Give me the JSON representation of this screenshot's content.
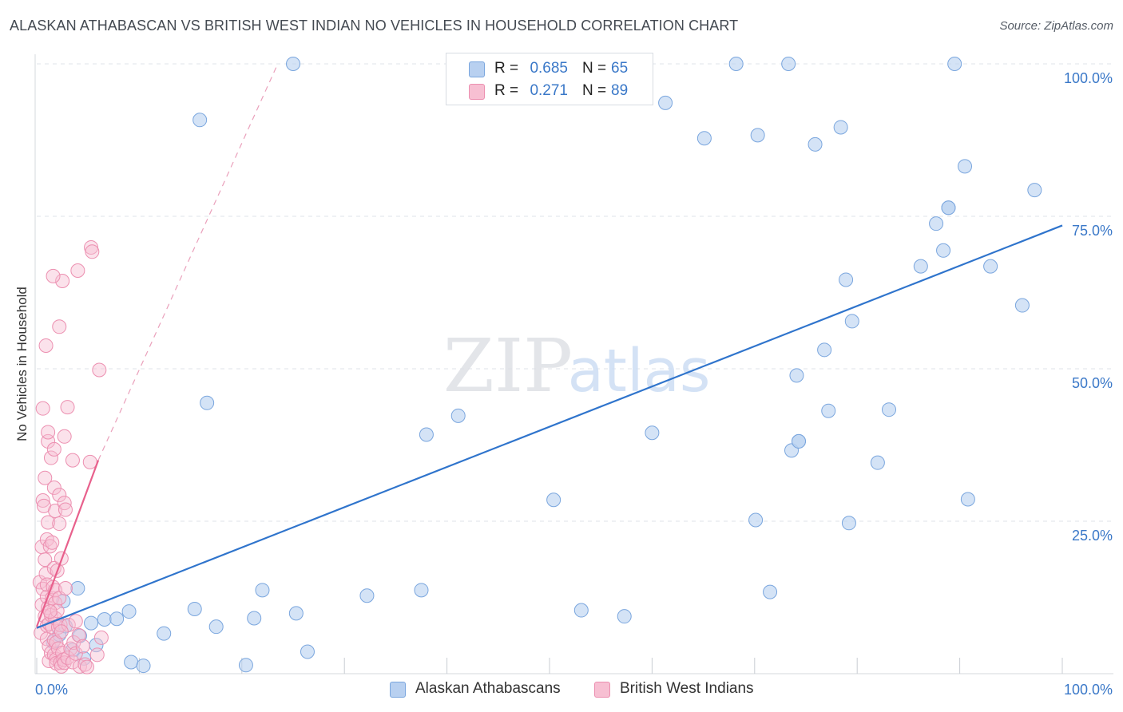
{
  "title": "ALASKAN ATHABASCAN VS BRITISH WEST INDIAN NO VEHICLES IN HOUSEHOLD CORRELATION CHART",
  "source": "Source: ZipAtlas.com",
  "watermark": {
    "zip": "ZIP",
    "atlas": "atlas"
  },
  "legend": {
    "r_label": "R =",
    "n_label": "N =",
    "series": [
      {
        "r": "0.685",
        "n": "65"
      },
      {
        "r": "0.271",
        "n": "89"
      }
    ]
  },
  "colors": {
    "blue_fill": "#b8d0f0",
    "blue_stroke": "#7aa6de",
    "blue_line": "#2f74cc",
    "pink_fill": "#f7bfd2",
    "pink_stroke": "#ec8fb0",
    "pink_line": "#e8608c",
    "tick_label": "#3a78c8",
    "grid": "#dfe3e8"
  },
  "chart_data": {
    "type": "scatter",
    "xlabel": "",
    "ylabel": "No Vehicles in Household",
    "xlim": [
      0,
      100
    ],
    "ylim": [
      0,
      100
    ],
    "x_tick_labels": [
      "0.0%",
      "100.0%"
    ],
    "y_ticks": [
      {
        "value": 25,
        "label": "25.0%"
      },
      {
        "value": 50,
        "label": "50.0%"
      },
      {
        "value": 75,
        "label": "75.0%"
      },
      {
        "value": 100,
        "label": "100.0%"
      }
    ],
    "grid": true,
    "series": [
      {
        "name": "Alaskan Athabascans",
        "color": "#b8d0f0",
        "trend": {
          "x0": 0,
          "y0": 7.5,
          "x1": 100,
          "y1": 73.5,
          "style": "solid"
        },
        "points": [
          [
            1.6,
            5.2
          ],
          [
            2.2,
            6.4
          ],
          [
            2.8,
            7.8
          ],
          [
            2.6,
            11.9
          ],
          [
            3.5,
            3.9
          ],
          [
            4.0,
            14.0
          ],
          [
            4.2,
            6.2
          ],
          [
            4.6,
            2.5
          ],
          [
            5.3,
            8.3
          ],
          [
            5.8,
            4.7
          ],
          [
            6.6,
            8.9
          ],
          [
            7.8,
            9.0
          ],
          [
            9.0,
            10.2
          ],
          [
            9.2,
            1.9
          ],
          [
            10.4,
            1.3
          ],
          [
            12.4,
            6.6
          ],
          [
            15.4,
            10.6
          ],
          [
            15.9,
            90.8
          ],
          [
            16.6,
            44.4
          ],
          [
            17.5,
            7.7
          ],
          [
            20.4,
            1.4
          ],
          [
            21.2,
            9.1
          ],
          [
            22.0,
            13.7
          ],
          [
            25.0,
            100.0
          ],
          [
            25.3,
            9.9
          ],
          [
            26.4,
            3.6
          ],
          [
            32.2,
            12.8
          ],
          [
            37.5,
            13.7
          ],
          [
            38.0,
            39.2
          ],
          [
            41.1,
            42.3
          ],
          [
            50.4,
            28.5
          ],
          [
            53.1,
            10.4
          ],
          [
            57.3,
            9.4
          ],
          [
            60.0,
            39.5
          ],
          [
            61.3,
            93.6
          ],
          [
            65.1,
            87.8
          ],
          [
            68.2,
            100.0
          ],
          [
            70.1,
            25.2
          ],
          [
            70.3,
            88.3
          ],
          [
            71.5,
            13.4
          ],
          [
            73.3,
            100.0
          ],
          [
            73.6,
            36.6
          ],
          [
            74.1,
            48.9
          ],
          [
            74.3,
            38.1
          ],
          [
            75.9,
            86.8
          ],
          [
            76.8,
            53.1
          ],
          [
            77.2,
            43.1
          ],
          [
            78.4,
            89.6
          ],
          [
            78.9,
            64.6
          ],
          [
            79.2,
            24.7
          ],
          [
            79.5,
            57.8
          ],
          [
            82.0,
            34.6
          ],
          [
            83.1,
            43.3
          ],
          [
            86.2,
            66.8
          ],
          [
            87.7,
            73.8
          ],
          [
            88.4,
            69.4
          ],
          [
            88.9,
            76.4
          ],
          [
            89.5,
            100.0
          ],
          [
            90.5,
            83.2
          ],
          [
            90.8,
            28.6
          ],
          [
            93.0,
            66.8
          ],
          [
            96.1,
            60.4
          ],
          [
            97.3,
            79.3
          ],
          [
            88.9,
            76.4
          ],
          [
            74.3,
            38.1
          ]
        ]
      },
      {
        "name": "British West Indians",
        "color": "#f7bfd2",
        "trend": {
          "x0": 0,
          "y0": 7.7,
          "x1": 6.0,
          "y1": 35.0,
          "dash_x1": 23.5,
          "dash_y1": 100.0,
          "style": "solid+dashed"
        },
        "points": [
          [
            0.3,
            15.0
          ],
          [
            0.4,
            6.7
          ],
          [
            0.5,
            11.3
          ],
          [
            0.5,
            20.8
          ],
          [
            0.6,
            28.4
          ],
          [
            0.6,
            13.9
          ],
          [
            0.7,
            27.5
          ],
          [
            0.8,
            18.7
          ],
          [
            0.8,
            32.1
          ],
          [
            0.8,
            9.4
          ],
          [
            0.9,
            16.4
          ],
          [
            0.9,
            53.8
          ],
          [
            1.0,
            12.6
          ],
          [
            1.0,
            5.7
          ],
          [
            1.0,
            14.6
          ],
          [
            1.0,
            22.0
          ],
          [
            1.0,
            7.9
          ],
          [
            1.1,
            24.8
          ],
          [
            1.1,
            38.1
          ],
          [
            1.1,
            10.8
          ],
          [
            1.1,
            39.6
          ],
          [
            1.2,
            4.5
          ],
          [
            1.2,
            2.1
          ],
          [
            1.2,
            8.2
          ],
          [
            1.3,
            20.9
          ],
          [
            1.4,
            9.6
          ],
          [
            1.4,
            35.4
          ],
          [
            1.4,
            3.4
          ],
          [
            1.5,
            12.4
          ],
          [
            1.5,
            7.6
          ],
          [
            1.5,
            21.5
          ],
          [
            1.6,
            14.2
          ],
          [
            1.7,
            5.5
          ],
          [
            1.7,
            30.5
          ],
          [
            1.7,
            36.8
          ],
          [
            1.7,
            3.1
          ],
          [
            1.7,
            17.3
          ],
          [
            1.8,
            11.6
          ],
          [
            1.8,
            9.1
          ],
          [
            1.8,
            13.7
          ],
          [
            1.8,
            26.7
          ],
          [
            1.9,
            2.4
          ],
          [
            1.9,
            1.7
          ],
          [
            1.9,
            5.1
          ],
          [
            2.0,
            16.9
          ],
          [
            2.0,
            10.3
          ],
          [
            2.1,
            7.6
          ],
          [
            2.1,
            4.1
          ],
          [
            2.2,
            56.9
          ],
          [
            2.2,
            24.6
          ],
          [
            2.2,
            12.4
          ],
          [
            2.2,
            29.3
          ],
          [
            2.3,
            1.8
          ],
          [
            2.3,
            8.0
          ],
          [
            2.4,
            18.9
          ],
          [
            2.4,
            1.2
          ],
          [
            2.5,
            64.4
          ],
          [
            2.5,
            3.4
          ],
          [
            2.6,
            2.3
          ],
          [
            2.7,
            38.9
          ],
          [
            2.7,
            1.8
          ],
          [
            2.7,
            28.0
          ],
          [
            2.8,
            26.9
          ],
          [
            2.8,
            14.0
          ],
          [
            3.0,
            43.7
          ],
          [
            3.0,
            2.6
          ],
          [
            3.1,
            8.0
          ],
          [
            3.3,
            4.1
          ],
          [
            3.5,
            1.9
          ],
          [
            3.5,
            35.0
          ],
          [
            3.6,
            5.1
          ],
          [
            3.8,
            3.3
          ],
          [
            3.8,
            8.6
          ],
          [
            4.0,
            66.1
          ],
          [
            4.1,
            6.3
          ],
          [
            4.2,
            1.2
          ],
          [
            4.5,
            4.5
          ],
          [
            4.7,
            1.5
          ],
          [
            4.9,
            1.1
          ],
          [
            5.2,
            34.7
          ],
          [
            5.3,
            69.9
          ],
          [
            5.4,
            69.2
          ],
          [
            5.9,
            3.1
          ],
          [
            6.1,
            49.8
          ],
          [
            6.3,
            5.9
          ],
          [
            0.6,
            43.5
          ],
          [
            1.6,
            65.2
          ],
          [
            2.4,
            6.9
          ],
          [
            1.3,
            10.2
          ]
        ]
      }
    ]
  }
}
